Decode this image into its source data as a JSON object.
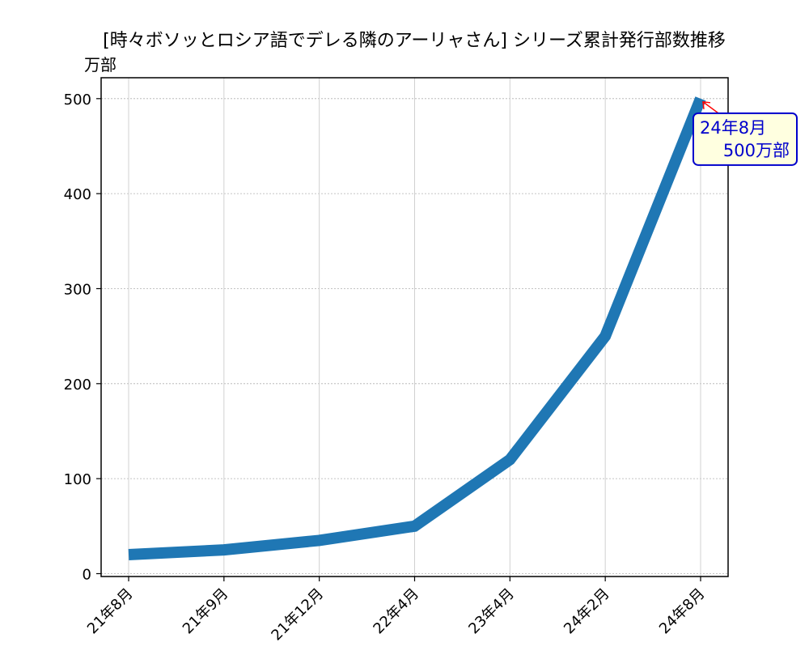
{
  "chart_data": {
    "type": "line",
    "title": "[時々ボソッとロシア語でデレる隣のアーリャさん] シリーズ累計発行部数推移",
    "ylabel": "万部",
    "xlabel": "",
    "categories": [
      "21年8月",
      "21年9月",
      "21年12月",
      "22年4月",
      "23年4月",
      "24年2月",
      "24年8月"
    ],
    "series": [
      {
        "values": [
          20,
          25,
          35,
          50,
          120,
          250,
          500
        ],
        "color": "#1f77b4"
      }
    ],
    "ylim": [
      -3,
      522
    ],
    "yticks": [
      0,
      100,
      200,
      300,
      400,
      500
    ],
    "grid": true,
    "annotation": {
      "text_line1": "24年8月",
      "text_line2": "500万部",
      "x_index": 6,
      "y": 500,
      "text_color": "#0000cc",
      "box_edge": "#0000cc",
      "box_fill": "#ffffe0",
      "arrow_color": "#ff0000"
    }
  }
}
